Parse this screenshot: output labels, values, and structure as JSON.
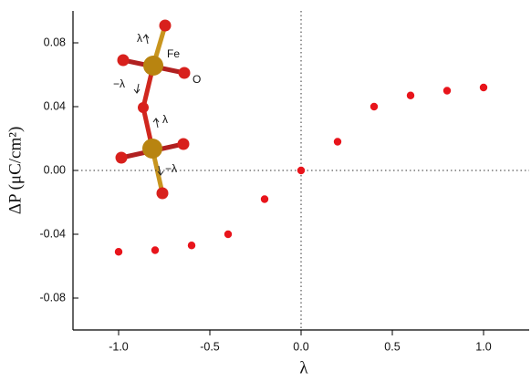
{
  "chart_data": {
    "type": "scatter",
    "xlabel": "λ",
    "ylabel": "ΔP (μC/cm²)",
    "x": [
      -1.0,
      -0.8,
      -0.6,
      -0.4,
      -0.2,
      0.0,
      0.2,
      0.4,
      0.6,
      0.8,
      1.0
    ],
    "values": [
      -0.051,
      -0.05,
      -0.047,
      -0.04,
      -0.018,
      0.0,
      0.018,
      0.04,
      0.047,
      0.05,
      0.052
    ],
    "color": "#e8141b",
    "xlim": [
      -1.25,
      1.25
    ],
    "ylim": [
      -0.1,
      0.1
    ],
    "xticks": [
      {
        "value": -1.0,
        "label": "-1.0"
      },
      -0.5,
      {
        "value": 0,
        "label": "0.0"
      },
      0.5,
      {
        "value": 1.0,
        "label": "1.0"
      }
    ],
    "yticks": [
      -0.08,
      -0.04,
      {
        "value": 0,
        "label": "0.00"
      },
      0.04,
      0.08
    ],
    "annotations": [
      "Fe",
      "O",
      "λ",
      "−λ",
      "λ",
      "−λ"
    ]
  }
}
